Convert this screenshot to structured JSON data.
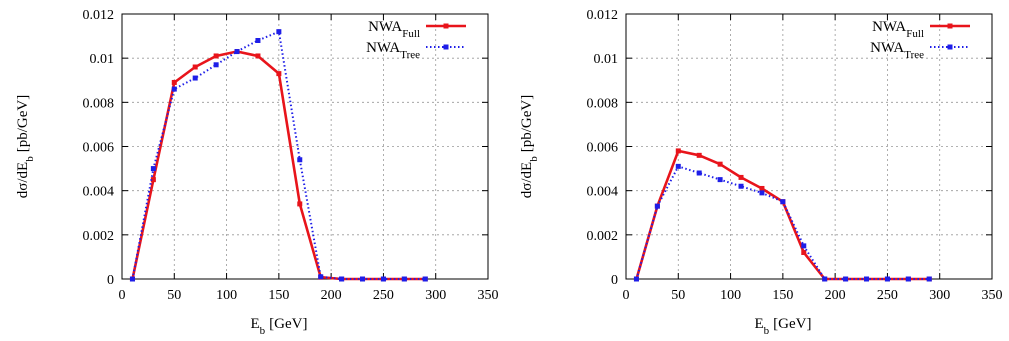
{
  "chart_data": [
    {
      "type": "line",
      "xlabel": "E",
      "xlabel_sub": "b",
      "xlabel_unit": "[GeV]",
      "ylabel": "dσ/dE",
      "ylabel_sub": "b",
      "ylabel_unit": "[pb/GeV]",
      "xlim": [
        0,
        350
      ],
      "ylim": [
        0,
        0.012
      ],
      "xticks": [
        "0",
        "50",
        "100",
        "150",
        "200",
        "250",
        "300",
        "350"
      ],
      "yticks": [
        "0",
        "0.002",
        "0.004",
        "0.006",
        "0.008",
        "0.01",
        "0.012"
      ],
      "grid": true,
      "legend_position": "top-right",
      "series": [
        {
          "name": "NWA",
          "name_sub": "Full",
          "color": "#e8141b",
          "style": "solid",
          "x": [
            10,
            30,
            50,
            70,
            90,
            110,
            130,
            150,
            170,
            190,
            210,
            230,
            250,
            270,
            290
          ],
          "y": [
            0,
            0.0045,
            0.0089,
            0.0096,
            0.0101,
            0.0103,
            0.0101,
            0.0093,
            0.0034,
            8e-05,
            0,
            0,
            0,
            0,
            0
          ]
        },
        {
          "name": "NWA",
          "name_sub": "Tree",
          "color": "#1e1ee8",
          "style": "dotted",
          "x": [
            10,
            30,
            50,
            70,
            90,
            110,
            130,
            150,
            170,
            190,
            210,
            230,
            250,
            270,
            290
          ],
          "y": [
            0,
            0.005,
            0.0086,
            0.0091,
            0.0097,
            0.0103,
            0.0108,
            0.0112,
            0.0054,
            0.0001,
            0,
            0,
            0,
            0,
            0
          ]
        }
      ]
    },
    {
      "type": "line",
      "xlabel": "E",
      "xlabel_sub": "b",
      "xlabel_unit": "[GeV]",
      "ylabel": "dσ/dE",
      "ylabel_sub": "b",
      "ylabel_unit": "[pb/GeV]",
      "xlim": [
        0,
        350
      ],
      "ylim": [
        0,
        0.012
      ],
      "xticks": [
        "0",
        "50",
        "100",
        "150",
        "200",
        "250",
        "300",
        "350"
      ],
      "yticks": [
        "0",
        "0.002",
        "0.004",
        "0.006",
        "0.008",
        "0.01",
        "0.012"
      ],
      "grid": true,
      "legend_position": "top-right",
      "series": [
        {
          "name": "NWA",
          "name_sub": "Full",
          "color": "#e8141b",
          "style": "solid",
          "x": [
            10,
            30,
            50,
            70,
            90,
            110,
            130,
            150,
            170,
            190,
            210,
            230,
            250,
            270,
            290
          ],
          "y": [
            0,
            0.0033,
            0.0058,
            0.0056,
            0.0052,
            0.0046,
            0.0041,
            0.0035,
            0.0012,
            0,
            0,
            0,
            0,
            0,
            0
          ]
        },
        {
          "name": "NWA",
          "name_sub": "Tree",
          "color": "#1e1ee8",
          "style": "dotted",
          "x": [
            10,
            30,
            50,
            70,
            90,
            110,
            130,
            150,
            170,
            190,
            210,
            230,
            250,
            270,
            290
          ],
          "y": [
            0,
            0.0033,
            0.0051,
            0.0048,
            0.0045,
            0.0042,
            0.0039,
            0.0035,
            0.0015,
            0,
            0,
            0,
            0,
            0,
            0
          ]
        }
      ]
    }
  ]
}
